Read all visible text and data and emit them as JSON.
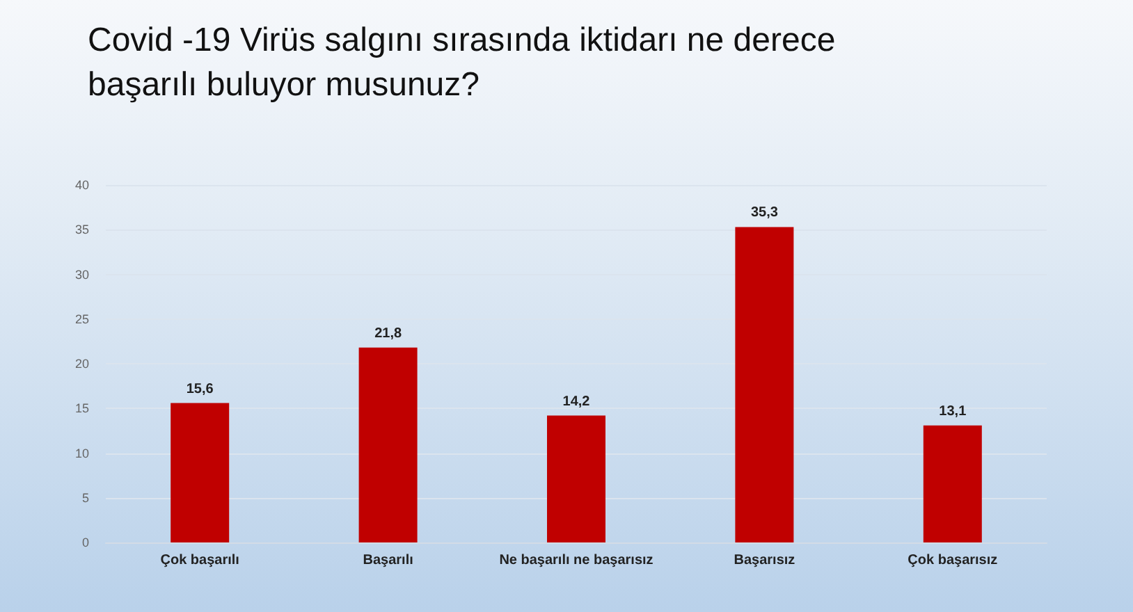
{
  "chart_data": {
    "type": "bar",
    "title": "Covid -19 Virüs salgını sırasında iktidarı ne derece başarılı buluyor musunuz?",
    "categories": [
      "Çok başarılı",
      "Başarılı",
      "Ne başarılı ne başarısız",
      "Başarısız",
      "Çok başarısız"
    ],
    "values": [
      15.6,
      21.8,
      14.2,
      35.3,
      13.1
    ],
    "value_labels": [
      "15,6",
      "21,8",
      "14,2",
      "35,3",
      "13,1"
    ],
    "color": "#c00000",
    "ylim": [
      0,
      40
    ],
    "yticks": [
      0,
      5,
      10,
      15,
      20,
      25,
      30,
      35,
      40
    ],
    "grid": "y"
  }
}
